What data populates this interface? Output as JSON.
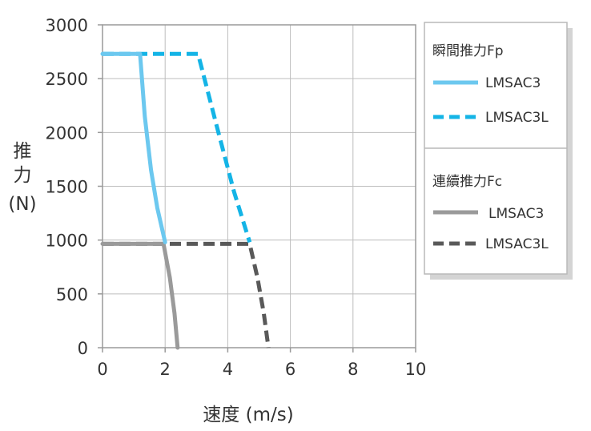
{
  "chart_data": {
    "type": "line",
    "xlabel": "速度 (m/s)",
    "ylabel": [
      "推",
      "力",
      "(N)"
    ],
    "xlim": [
      0,
      10
    ],
    "ylim": [
      0,
      3000
    ],
    "x_ticks": [
      "0",
      "2",
      "4",
      "6",
      "8",
      "10"
    ],
    "y_ticks": [
      "0",
      "500",
      "1000",
      "1500",
      "2000",
      "2500",
      "3000"
    ],
    "grid": true,
    "legend_position": "right",
    "legend_groups": [
      {
        "title": "瞬間推力Fp",
        "entries": [
          "LMSAC3",
          "LMSAC3L"
        ]
      },
      {
        "title": "連續推力Fc",
        "entries": [
          "LMSAC3",
          "LMSAC3L"
        ]
      }
    ],
    "series": [
      {
        "name": "LMSAC3",
        "group": "瞬間推力Fp",
        "color": "#6cc8ef",
        "dash": "solid",
        "points": [
          [
            0,
            2730
          ],
          [
            1.2,
            2730
          ],
          [
            1.35,
            2150
          ],
          [
            1.55,
            1650
          ],
          [
            1.75,
            1300
          ],
          [
            2.0,
            980
          ]
        ]
      },
      {
        "name": "LMSAC3L",
        "group": "瞬間推力Fp",
        "color": "#14b4e6",
        "dash": "dashed",
        "points": [
          [
            0,
            2730
          ],
          [
            3.05,
            2730
          ],
          [
            3.7,
            2000
          ],
          [
            4.2,
            1450
          ],
          [
            4.7,
            980
          ]
        ]
      },
      {
        "name": "LMSAC3",
        "group": "連續推力Fc",
        "color": "#9a9a9a",
        "dash": "solid",
        "points": [
          [
            0,
            965
          ],
          [
            1.95,
            965
          ],
          [
            2.15,
            650
          ],
          [
            2.3,
            320
          ],
          [
            2.4,
            0
          ]
        ]
      },
      {
        "name": "LMSAC3L",
        "group": "連續推力Fc",
        "color": "#595959",
        "dash": "dashed",
        "points": [
          [
            0,
            965
          ],
          [
            4.7,
            965
          ],
          [
            4.95,
            650
          ],
          [
            5.15,
            320
          ],
          [
            5.3,
            0
          ]
        ]
      }
    ]
  }
}
